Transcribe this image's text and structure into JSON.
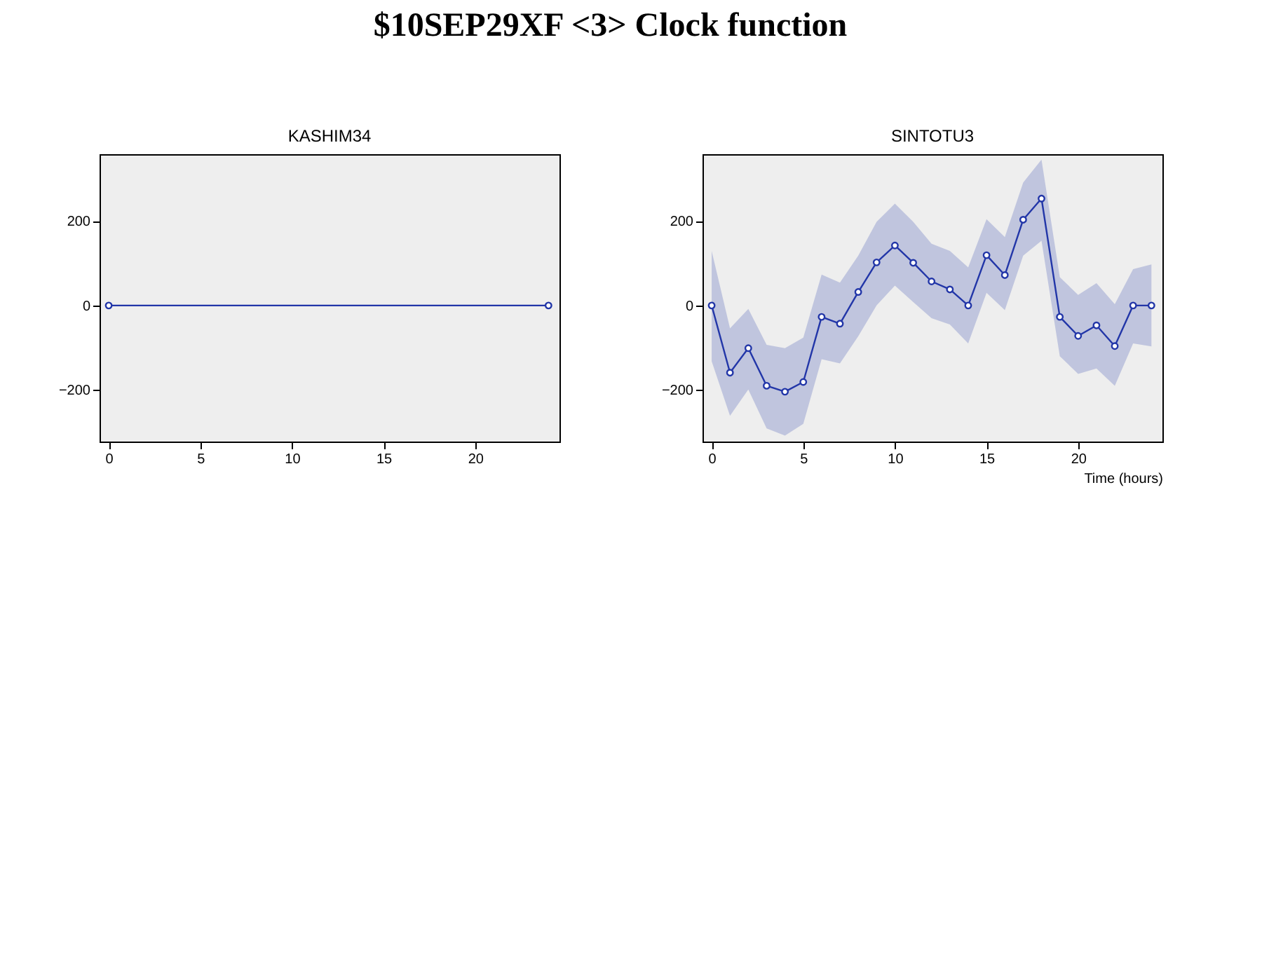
{
  "chart_data": [
    {
      "type": "line",
      "title": "KASHIM34",
      "annotations": [
        "$10SEP29XF <3>  Clock function"
      ],
      "xlim": [
        -0.5,
        24.6
      ],
      "ylim": [
        -322,
        358
      ],
      "xticks": [
        0,
        5,
        10,
        15,
        20
      ],
      "yticks": [
        -200,
        0,
        200
      ],
      "grid": false,
      "marker": "circle",
      "line_style": "solid",
      "series": [
        {
          "color": "#2236a8",
          "x": [
            0,
            24
          ],
          "values": [
            0,
            0
          ]
        }
      ]
    },
    {
      "type": "line",
      "title": "SINTOTU3",
      "xlabel": "Time (hours)",
      "xlim": [
        -0.5,
        24.6
      ],
      "ylim": [
        -322,
        358
      ],
      "xticks": [
        0,
        5,
        10,
        15,
        20
      ],
      "yticks": [
        -200,
        0,
        200
      ],
      "grid": false,
      "marker": "circle",
      "line_style": "solid",
      "series": [
        {
          "color": "#2236a8",
          "x": [
            0,
            1,
            2,
            3,
            4,
            5,
            6,
            7,
            8,
            9,
            10,
            11,
            12,
            13,
            14,
            15,
            16,
            17,
            18,
            19,
            20,
            21,
            22,
            23,
            24
          ],
          "values": [
            0,
            -159,
            -101,
            -190,
            -204,
            -181,
            -27,
            -43,
            32,
            102,
            142,
            101,
            57,
            38,
            0,
            119,
            72,
            203,
            253,
            -27,
            -72,
            -47,
            -96,
            0,
            0
          ],
          "upper": [
            129,
            -54,
            -8,
            -93,
            -101,
            -76,
            73,
            54,
            118,
            198,
            241,
            198,
            146,
            129,
            90,
            204,
            162,
            291,
            345,
            67,
            25,
            53,
            3,
            86,
            97
          ],
          "lower": [
            -132,
            -261,
            -199,
            -291,
            -308,
            -280,
            -127,
            -137,
            -73,
            0,
            47,
            8,
            -30,
            -45,
            -90,
            30,
            -11,
            118,
            153,
            -120,
            -162,
            -149,
            -190,
            -90,
            -97
          ]
        }
      ]
    }
  ]
}
